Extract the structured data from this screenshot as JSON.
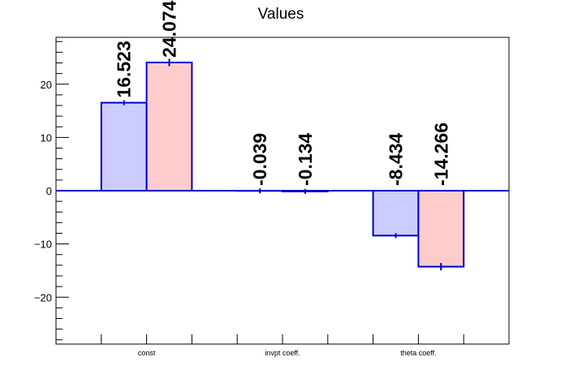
{
  "chart_data": {
    "type": "bar",
    "title": "Values",
    "xlabel": "",
    "ylabel": "",
    "categories": [
      "const",
      "invpt coeff.",
      "theta coeff."
    ],
    "series": [
      {
        "values": [
          16.523,
          -0.039,
          -8.434
        ],
        "errors": [
          0.0,
          0.05,
          0.0
        ],
        "color": "#ccccff"
      },
      {
        "values": [
          24.074,
          -0.134,
          -14.266
        ],
        "errors": [
          0.7,
          0.1,
          0.7
        ],
        "color": "#ffcccc"
      }
    ],
    "data_labels": [
      [
        "16.523",
        "-0.039",
        "-8.434"
      ],
      [
        "24.074",
        "-0.134",
        "-14.266"
      ]
    ],
    "ylim": [
      -28.8,
      28.8
    ],
    "yticks": [
      -20,
      -10,
      0,
      10,
      20
    ],
    "ytick_labels": [
      "−20",
      "−10",
      "0",
      "10",
      "20"
    ],
    "bar_edge_color": "#0000cc",
    "grid": false,
    "legend": "none"
  }
}
